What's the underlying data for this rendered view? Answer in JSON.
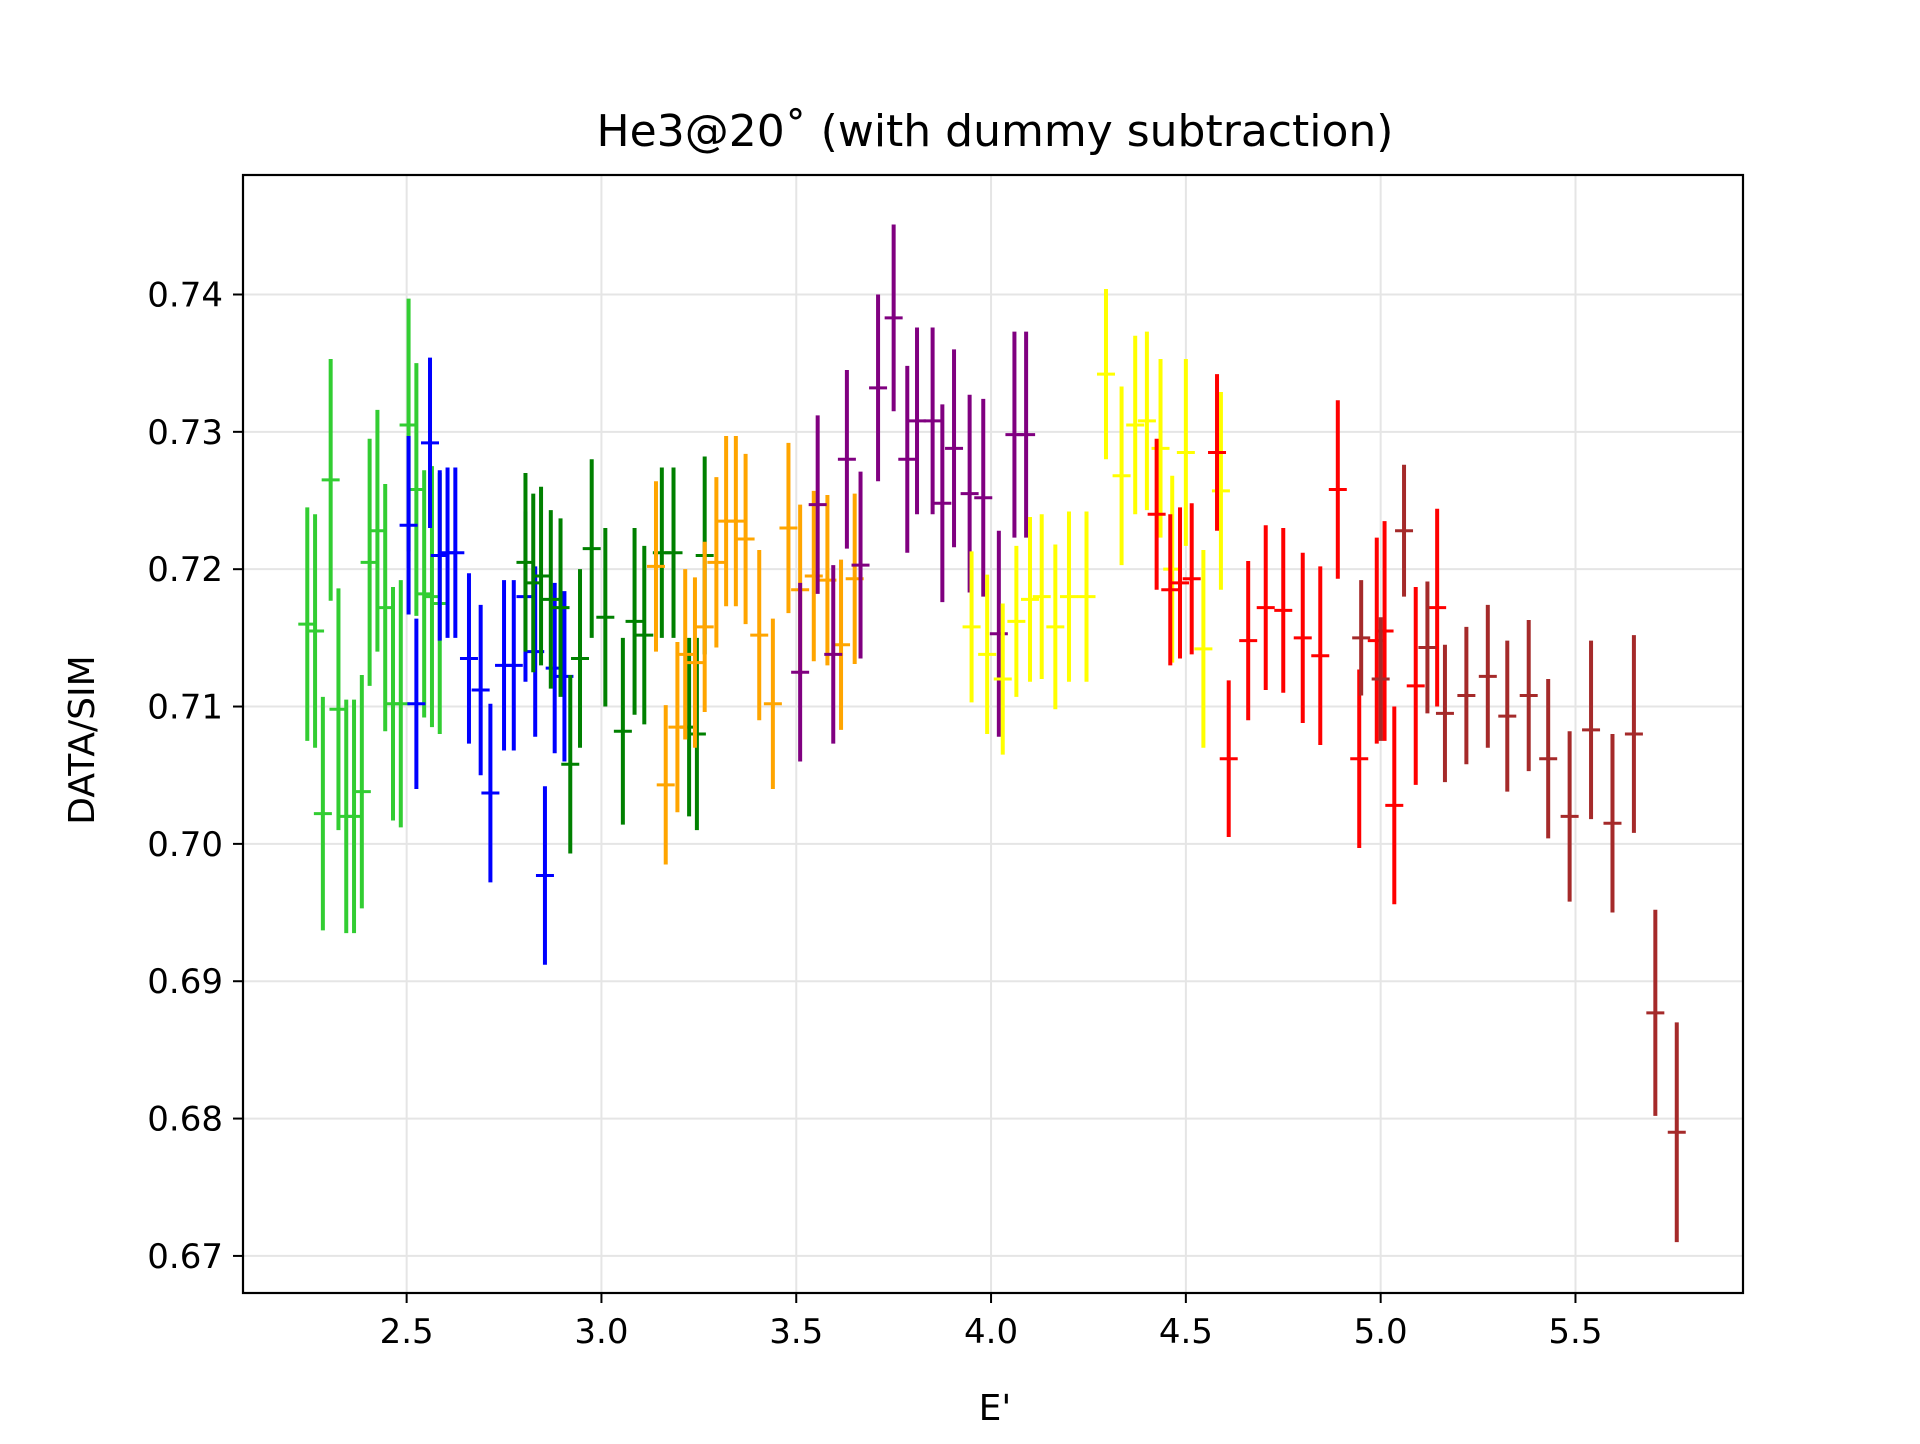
{
  "chart_data": {
    "type": "scatter",
    "title": "He3@20˚ (with dummy subtraction)",
    "xlabel": "E'",
    "ylabel": "DATA/SIM",
    "xlim": [
      2.08,
      5.93
    ],
    "ylim": [
      0.6673,
      0.7487
    ],
    "x_ticks": [
      2.5,
      3.0,
      3.5,
      4.0,
      4.5,
      5.0,
      5.5
    ],
    "x_tick_labels": [
      "2.5",
      "3.0",
      "3.5",
      "4.0",
      "4.5",
      "5.0",
      "5.5"
    ],
    "y_ticks": [
      0.67,
      0.68,
      0.69,
      0.7,
      0.71,
      0.72,
      0.73,
      0.74
    ],
    "y_tick_labels": [
      "0.67",
      "0.68",
      "0.69",
      "0.70",
      "0.71",
      "0.72",
      "0.73",
      "0.74"
    ],
    "grid": true,
    "legend": "none",
    "series": [
      {
        "color": "#32cd32",
        "points": [
          {
            "x": 2.245,
            "y": 0.716,
            "err": 0.0085
          },
          {
            "x": 2.265,
            "y": 0.7155,
            "err": 0.0085
          },
          {
            "x": 2.285,
            "y": 0.7022,
            "err": 0.0085
          },
          {
            "x": 2.305,
            "y": 0.7265,
            "err": 0.0088
          },
          {
            "x": 2.325,
            "y": 0.7098,
            "err": 0.0088
          },
          {
            "x": 2.345,
            "y": 0.702,
            "err": 0.0085
          },
          {
            "x": 2.365,
            "y": 0.702,
            "err": 0.0085
          },
          {
            "x": 2.385,
            "y": 0.7038,
            "err": 0.0085
          },
          {
            "x": 2.405,
            "y": 0.7205,
            "err": 0.009
          },
          {
            "x": 2.425,
            "y": 0.7228,
            "err": 0.0088
          },
          {
            "x": 2.445,
            "y": 0.7172,
            "err": 0.009
          },
          {
            "x": 2.465,
            "y": 0.7102,
            "err": 0.0085
          },
          {
            "x": 2.485,
            "y": 0.7102,
            "err": 0.009
          },
          {
            "x": 2.505,
            "y": 0.7305,
            "err": 0.0092
          },
          {
            "x": 2.525,
            "y": 0.7258,
            "err": 0.0092
          },
          {
            "x": 2.545,
            "y": 0.7182,
            "err": 0.009
          },
          {
            "x": 2.565,
            "y": 0.718,
            "err": 0.0095
          },
          {
            "x": 2.585,
            "y": 0.7175,
            "err": 0.0095
          }
        ]
      },
      {
        "color": "#0000ff",
        "points": [
          {
            "x": 2.505,
            "y": 0.7232,
            "err": 0.0065
          },
          {
            "x": 2.525,
            "y": 0.7102,
            "err": 0.0062
          },
          {
            "x": 2.56,
            "y": 0.7292,
            "err": 0.0062
          },
          {
            "x": 2.585,
            "y": 0.721,
            "err": 0.0062
          },
          {
            "x": 2.605,
            "y": 0.7212,
            "err": 0.0062
          },
          {
            "x": 2.625,
            "y": 0.7212,
            "err": 0.0062
          },
          {
            "x": 2.66,
            "y": 0.7135,
            "err": 0.0062
          },
          {
            "x": 2.69,
            "y": 0.7112,
            "err": 0.0062
          },
          {
            "x": 2.715,
            "y": 0.7037,
            "err": 0.0065
          },
          {
            "x": 2.75,
            "y": 0.713,
            "err": 0.0062
          },
          {
            "x": 2.775,
            "y": 0.713,
            "err": 0.0062
          },
          {
            "x": 2.805,
            "y": 0.718,
            "err": 0.0062
          },
          {
            "x": 2.83,
            "y": 0.714,
            "err": 0.0062
          },
          {
            "x": 2.855,
            "y": 0.6977,
            "err": 0.0065
          },
          {
            "x": 2.88,
            "y": 0.7128,
            "err": 0.0062
          },
          {
            "x": 2.905,
            "y": 0.7122,
            "err": 0.0062
          }
        ]
      },
      {
        "color": "#008000",
        "points": [
          {
            "x": 2.805,
            "y": 0.7205,
            "err": 0.0065
          },
          {
            "x": 2.825,
            "y": 0.719,
            "err": 0.0065
          },
          {
            "x": 2.845,
            "y": 0.7195,
            "err": 0.0065
          },
          {
            "x": 2.87,
            "y": 0.7178,
            "err": 0.0065
          },
          {
            "x": 2.895,
            "y": 0.7172,
            "err": 0.0065
          },
          {
            "x": 2.92,
            "y": 0.7058,
            "err": 0.0065
          },
          {
            "x": 2.945,
            "y": 0.7135,
            "err": 0.0065
          },
          {
            "x": 2.975,
            "y": 0.7215,
            "err": 0.0065
          },
          {
            "x": 3.01,
            "y": 0.7165,
            "err": 0.0065
          },
          {
            "x": 3.055,
            "y": 0.7082,
            "err": 0.0068
          },
          {
            "x": 3.085,
            "y": 0.7162,
            "err": 0.0068
          },
          {
            "x": 3.11,
            "y": 0.7152,
            "err": 0.0065
          },
          {
            "x": 3.155,
            "y": 0.7212,
            "err": 0.0062
          },
          {
            "x": 3.185,
            "y": 0.7212,
            "err": 0.0062
          },
          {
            "x": 3.225,
            "y": 0.7085,
            "err": 0.0065
          },
          {
            "x": 3.245,
            "y": 0.708,
            "err": 0.007
          },
          {
            "x": 3.265,
            "y": 0.721,
            "err": 0.0072
          }
        ]
      },
      {
        "color": "#ffa500",
        "points": [
          {
            "x": 3.14,
            "y": 0.7202,
            "err": 0.0062
          },
          {
            "x": 3.165,
            "y": 0.7043,
            "err": 0.0058
          },
          {
            "x": 3.195,
            "y": 0.7085,
            "err": 0.0062
          },
          {
            "x": 3.215,
            "y": 0.7138,
            "err": 0.0062
          },
          {
            "x": 3.24,
            "y": 0.7132,
            "err": 0.0062
          },
          {
            "x": 3.265,
            "y": 0.7158,
            "err": 0.0062
          },
          {
            "x": 3.295,
            "y": 0.7205,
            "err": 0.0062
          },
          {
            "x": 3.32,
            "y": 0.7235,
            "err": 0.0062
          },
          {
            "x": 3.345,
            "y": 0.7235,
            "err": 0.0062
          },
          {
            "x": 3.37,
            "y": 0.7222,
            "err": 0.0062
          },
          {
            "x": 3.405,
            "y": 0.7152,
            "err": 0.0062
          },
          {
            "x": 3.44,
            "y": 0.7102,
            "err": 0.0062
          },
          {
            "x": 3.48,
            "y": 0.723,
            "err": 0.0062
          },
          {
            "x": 3.51,
            "y": 0.7185,
            "err": 0.0062
          },
          {
            "x": 3.545,
            "y": 0.7195,
            "err": 0.0062
          },
          {
            "x": 3.58,
            "y": 0.7192,
            "err": 0.0062
          },
          {
            "x": 3.615,
            "y": 0.7145,
            "err": 0.0062
          },
          {
            "x": 3.65,
            "y": 0.7193,
            "err": 0.0062
          }
        ]
      },
      {
        "color": "#800080",
        "points": [
          {
            "x": 3.51,
            "y": 0.7125,
            "err": 0.0065
          },
          {
            "x": 3.555,
            "y": 0.7247,
            "err": 0.0065
          },
          {
            "x": 3.595,
            "y": 0.7138,
            "err": 0.0065
          },
          {
            "x": 3.63,
            "y": 0.728,
            "err": 0.0065
          },
          {
            "x": 3.665,
            "y": 0.7203,
            "err": 0.0068
          },
          {
            "x": 3.71,
            "y": 0.7332,
            "err": 0.0068
          },
          {
            "x": 3.75,
            "y": 0.7383,
            "err": 0.0068
          },
          {
            "x": 3.785,
            "y": 0.728,
            "err": 0.0068
          },
          {
            "x": 3.81,
            "y": 0.7308,
            "err": 0.0068
          },
          {
            "x": 3.85,
            "y": 0.7308,
            "err": 0.0068
          },
          {
            "x": 3.875,
            "y": 0.7248,
            "err": 0.0072
          },
          {
            "x": 3.905,
            "y": 0.7288,
            "err": 0.0072
          },
          {
            "x": 3.945,
            "y": 0.7255,
            "err": 0.0072
          },
          {
            "x": 3.98,
            "y": 0.7252,
            "err": 0.0072
          },
          {
            "x": 4.02,
            "y": 0.7153,
            "err": 0.0075
          },
          {
            "x": 4.06,
            "y": 0.7298,
            "err": 0.0075
          },
          {
            "x": 4.09,
            "y": 0.7298,
            "err": 0.0075
          }
        ]
      },
      {
        "color": "#ffff00",
        "points": [
          {
            "x": 3.95,
            "y": 0.7158,
            "err": 0.0055
          },
          {
            "x": 3.99,
            "y": 0.7138,
            "err": 0.0058
          },
          {
            "x": 4.03,
            "y": 0.712,
            "err": 0.0055
          },
          {
            "x": 4.065,
            "y": 0.7162,
            "err": 0.0055
          },
          {
            "x": 4.1,
            "y": 0.7178,
            "err": 0.006
          },
          {
            "x": 4.13,
            "y": 0.718,
            "err": 0.006
          },
          {
            "x": 4.165,
            "y": 0.7158,
            "err": 0.006
          },
          {
            "x": 4.2,
            "y": 0.718,
            "err": 0.0062
          },
          {
            "x": 4.245,
            "y": 0.718,
            "err": 0.0062
          },
          {
            "x": 4.295,
            "y": 0.7342,
            "err": 0.0062
          },
          {
            "x": 4.335,
            "y": 0.7268,
            "err": 0.0065
          },
          {
            "x": 4.37,
            "y": 0.7305,
            "err": 0.0065
          },
          {
            "x": 4.4,
            "y": 0.7308,
            "err": 0.0065
          },
          {
            "x": 4.435,
            "y": 0.7288,
            "err": 0.0065
          },
          {
            "x": 4.465,
            "y": 0.72,
            "err": 0.0068
          },
          {
            "x": 4.5,
            "y": 0.7285,
            "err": 0.0068
          },
          {
            "x": 4.545,
            "y": 0.7142,
            "err": 0.0072
          },
          {
            "x": 4.59,
            "y": 0.7257,
            "err": 0.0072
          }
        ]
      },
      {
        "color": "#ff0000",
        "points": [
          {
            "x": 4.425,
            "y": 0.724,
            "err": 0.0055
          },
          {
            "x": 4.46,
            "y": 0.7185,
            "err": 0.0055
          },
          {
            "x": 4.485,
            "y": 0.719,
            "err": 0.0055
          },
          {
            "x": 4.515,
            "y": 0.7193,
            "err": 0.0055
          },
          {
            "x": 4.58,
            "y": 0.7285,
            "err": 0.0057
          },
          {
            "x": 4.61,
            "y": 0.7062,
            "err": 0.0057
          },
          {
            "x": 4.66,
            "y": 0.7148,
            "err": 0.0058
          },
          {
            "x": 4.705,
            "y": 0.7172,
            "err": 0.006
          },
          {
            "x": 4.75,
            "y": 0.717,
            "err": 0.006
          },
          {
            "x": 4.8,
            "y": 0.715,
            "err": 0.0062
          },
          {
            "x": 4.845,
            "y": 0.7137,
            "err": 0.0065
          },
          {
            "x": 4.89,
            "y": 0.7258,
            "err": 0.0065
          },
          {
            "x": 4.945,
            "y": 0.7062,
            "err": 0.0065
          },
          {
            "x": 4.99,
            "y": 0.7148,
            "err": 0.0075
          },
          {
            "x": 5.01,
            "y": 0.7155,
            "err": 0.008
          },
          {
            "x": 5.035,
            "y": 0.7028,
            "err": 0.0072
          },
          {
            "x": 5.09,
            "y": 0.7115,
            "err": 0.0072
          },
          {
            "x": 5.145,
            "y": 0.7172,
            "err": 0.0072
          }
        ]
      },
      {
        "color": "#a52a2a",
        "points": [
          {
            "x": 4.95,
            "y": 0.715,
            "err": 0.0042
          },
          {
            "x": 5.0,
            "y": 0.712,
            "err": 0.0045
          },
          {
            "x": 5.06,
            "y": 0.7228,
            "err": 0.0048
          },
          {
            "x": 5.12,
            "y": 0.7143,
            "err": 0.0048
          },
          {
            "x": 5.165,
            "y": 0.7095,
            "err": 0.005
          },
          {
            "x": 5.22,
            "y": 0.7108,
            "err": 0.005
          },
          {
            "x": 5.275,
            "y": 0.7122,
            "err": 0.0052
          },
          {
            "x": 5.325,
            "y": 0.7093,
            "err": 0.0055
          },
          {
            "x": 5.38,
            "y": 0.7108,
            "err": 0.0055
          },
          {
            "x": 5.43,
            "y": 0.7062,
            "err": 0.0058
          },
          {
            "x": 5.485,
            "y": 0.702,
            "err": 0.0062
          },
          {
            "x": 5.54,
            "y": 0.7083,
            "err": 0.0065
          },
          {
            "x": 5.595,
            "y": 0.7015,
            "err": 0.0065
          },
          {
            "x": 5.65,
            "y": 0.708,
            "err": 0.0072
          },
          {
            "x": 5.705,
            "y": 0.6877,
            "err": 0.0075
          },
          {
            "x": 5.76,
            "y": 0.679,
            "err": 0.008
          }
        ]
      }
    ]
  }
}
